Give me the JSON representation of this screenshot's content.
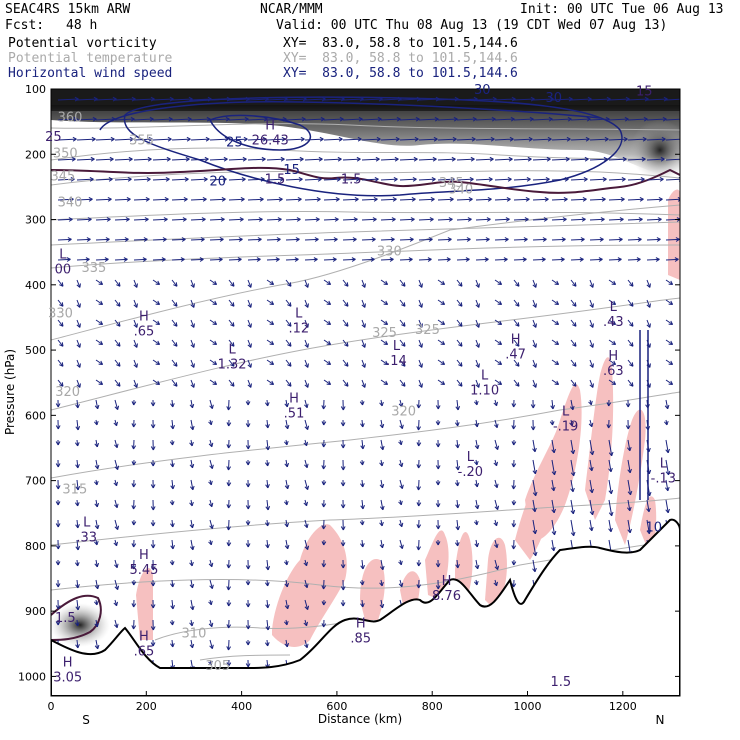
{
  "header": {
    "model": "SEAC4RS 15km ARW",
    "org": "NCAR/MMM",
    "init": "Init: 00 UTC Tue 06 Aug 13",
    "fcst_label": "Fcst:",
    "fcst_value": "48 h",
    "valid": "Valid: 00 UTC Thu 08 Aug 13 (19 CDT Wed 07 Aug 13)"
  },
  "legend": [
    {
      "name": "Potential vorticity",
      "xy": "XY=  83.0, 58.8 to 101.5,144.6",
      "color": "#000000"
    },
    {
      "name": "Potential temperature",
      "xy": "XY=  83.0, 58.8 to 101.5,144.6",
      "color": "#aaaaaa"
    },
    {
      "name": "Horizontal wind speed",
      "xy": "XY=  83.0, 58.8 to 101.5,144.6",
      "color": "#1a237e"
    }
  ],
  "chart_data": {
    "type": "cross-section",
    "xlabel": "Distance (km)",
    "ylabel": "Pressure (hPa)",
    "xlim": [
      0,
      1320
    ],
    "ylim": [
      1030,
      100
    ],
    "x_ticks": [
      "0",
      "200",
      "400",
      "600",
      "800",
      "1000",
      "1200"
    ],
    "y_ticks": [
      "100",
      "200",
      "300",
      "400",
      "500",
      "600",
      "700",
      "800",
      "900",
      "1000"
    ],
    "end_labels": {
      "left": "S",
      "right": "N"
    },
    "colors": {
      "pv_fill": "#f6c0c0",
      "wind": "#1a237e",
      "theta": "#a8a8a8",
      "pv_line": "#4a1a3a",
      "terrain": "#000000"
    },
    "theta_labels": [
      {
        "text": "360",
        "x": 40,
        "p": 150
      },
      {
        "text": "355",
        "x": 190,
        "p": 185
      },
      {
        "text": "350",
        "x": 30,
        "p": 205
      },
      {
        "text": "345",
        "x": 25,
        "p": 240
      },
      {
        "text": "340",
        "x": 40,
        "p": 280
      },
      {
        "text": "335",
        "x": 90,
        "p": 380
      },
      {
        "text": "330",
        "x": 20,
        "p": 450
      },
      {
        "text": "330",
        "x": 710,
        "p": 355
      },
      {
        "text": "325",
        "x": 700,
        "p": 480
      },
      {
        "text": "325",
        "x": 790,
        "p": 475
      },
      {
        "text": "320",
        "x": 35,
        "p": 570
      },
      {
        "text": "320",
        "x": 740,
        "p": 600
      },
      {
        "text": "315",
        "x": 50,
        "p": 720
      },
      {
        "text": "310",
        "x": 300,
        "p": 940
      },
      {
        "text": "305",
        "x": 350,
        "p": 990
      },
      {
        "text": "345",
        "x": 840,
        "p": 250
      },
      {
        "text": "340",
        "x": 860,
        "p": 260
      }
    ],
    "wind_speed_labels": [
      {
        "text": "25",
        "x": 385,
        "p": 188
      },
      {
        "text": "20",
        "x": 350,
        "p": 248
      },
      {
        "text": "15",
        "x": 505,
        "p": 230
      },
      {
        "text": "30",
        "x": 905,
        "p": 108
      },
      {
        "text": "30",
        "x": 1055,
        "p": 120
      },
      {
        "text": "10",
        "x": 1265,
        "p": 778
      }
    ],
    "pv_contour_labels": [
      {
        "text": "25",
        "x": 5,
        "p": 180
      },
      {
        "text": "1.5",
        "x": 30,
        "p": 917
      },
      {
        "text": "1.5",
        "x": 470,
        "p": 245
      },
      {
        "text": "1.5",
        "x": 1070,
        "p": 1015
      },
      {
        "text": "1.5",
        "x": 630,
        "p": 245
      },
      {
        "text": "15",
        "x": 1245,
        "p": 110
      }
    ],
    "extrema": [
      {
        "type": "H",
        "value": "26.43",
        "x": 460,
        "p": 162
      },
      {
        "type": "L",
        "value": "00",
        "x": 25,
        "p": 360
      },
      {
        "type": "H",
        "value": ".65",
        "x": 195,
        "p": 455
      },
      {
        "type": "L",
        "value": "1.32",
        "x": 380,
        "p": 505
      },
      {
        "type": "L",
        "value": ".12",
        "x": 520,
        "p": 450
      },
      {
        "type": "L",
        "value": ".14",
        "x": 725,
        "p": 500
      },
      {
        "type": "H",
        "value": ".47",
        "x": 975,
        "p": 490
      },
      {
        "type": "L",
        "value": "1.10",
        "x": 910,
        "p": 545
      },
      {
        "type": "L",
        "value": ".43",
        "x": 1180,
        "p": 440
      },
      {
        "type": "H",
        "value": ".63",
        "x": 1180,
        "p": 515
      },
      {
        "type": "H",
        "value": ".51",
        "x": 510,
        "p": 580
      },
      {
        "type": "L",
        "value": "-.19",
        "x": 1080,
        "p": 600
      },
      {
        "type": "L",
        "value": "-.20",
        "x": 880,
        "p": 670
      },
      {
        "type": "L",
        "value": "-.13",
        "x": 1285,
        "p": 680
      },
      {
        "type": "L",
        "value": ".33",
        "x": 75,
        "p": 770
      },
      {
        "type": "H",
        "value": "5.45",
        "x": 195,
        "p": 820
      },
      {
        "type": "H",
        "value": "8.76",
        "x": 830,
        "p": 860
      },
      {
        "type": "H",
        "value": ".85",
        "x": 650,
        "p": 925
      },
      {
        "type": "H",
        "value": ".65",
        "x": 195,
        "p": 945
      },
      {
        "type": "H",
        "value": "3.05",
        "x": 35,
        "p": 985
      }
    ],
    "grid": false
  }
}
